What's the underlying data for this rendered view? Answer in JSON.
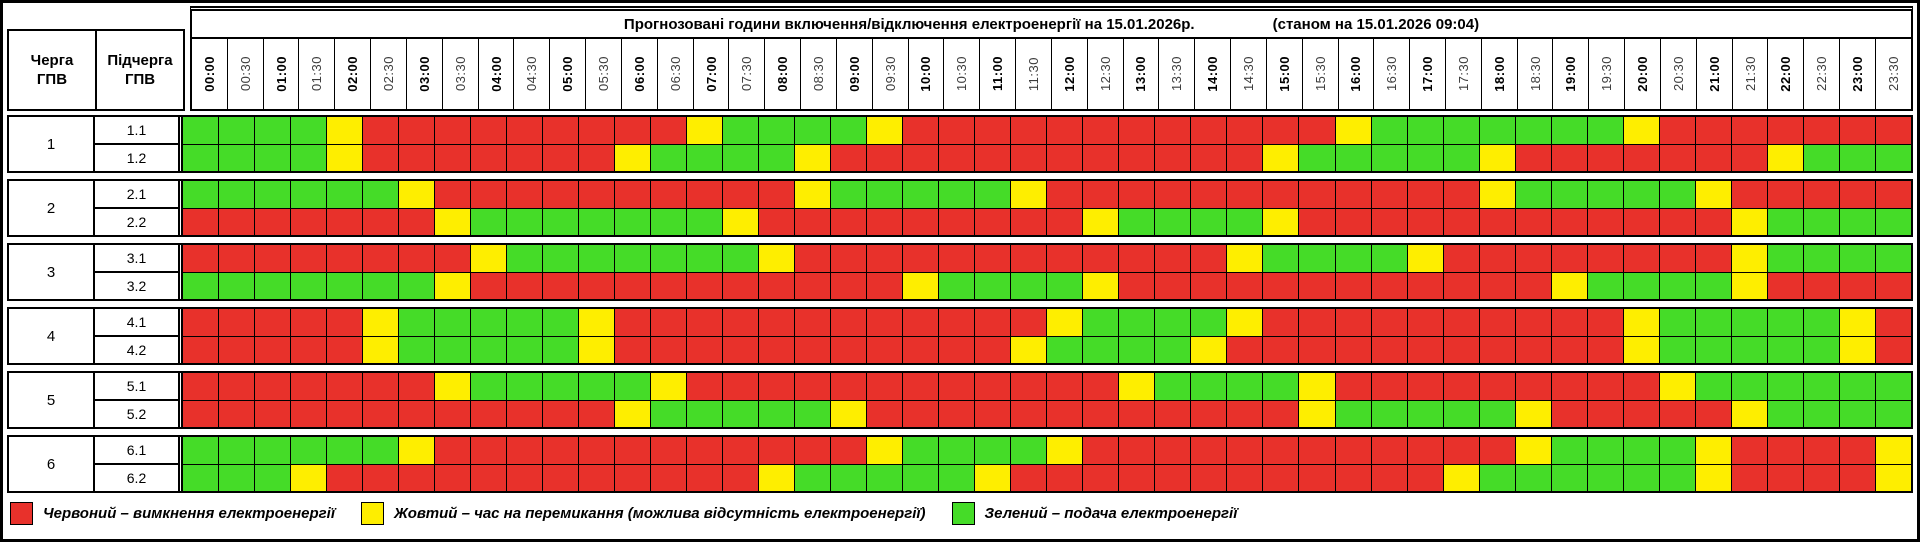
{
  "chart_data": {
    "type": "heatmap",
    "title": "Прогнозовані години включення/відключення електроенергії на 15.01.2026р.",
    "status": "(станом на 15.01.2026 09:04)",
    "col_headers": {
      "queue": "Черга\nГПВ",
      "subqueue": "Підчерга\nГПВ"
    },
    "x": [
      "00:00",
      "00:30",
      "01:00",
      "01:30",
      "02:00",
      "02:30",
      "03:00",
      "03:30",
      "04:00",
      "04:30",
      "05:00",
      "05:30",
      "06:00",
      "06:30",
      "07:00",
      "07:30",
      "08:00",
      "08:30",
      "09:00",
      "09:30",
      "10:00",
      "10:30",
      "11:00",
      "11:30",
      "12:00",
      "12:30",
      "13:00",
      "13:30",
      "14:00",
      "14:30",
      "15:00",
      "15:30",
      "16:00",
      "16:30",
      "17:00",
      "17:30",
      "18:00",
      "18:30",
      "19:00",
      "19:30",
      "20:00",
      "20:30",
      "21:00",
      "21:30",
      "22:00",
      "22:30",
      "23:00",
      "23:30"
    ],
    "slot_minutes": 30,
    "groups": [
      {
        "queue": "1",
        "rows": [
          {
            "label": "1.1",
            "slots": "GGGGYRRRRRRRRRYGGGGYRRRRRRRRRRRRYGGGGGGGYRRRRRRR"
          },
          {
            "label": "1.2",
            "slots": "GGGGYRRRRRRRYGGGGYRRRRRRRRRRRRYGGGGGYRRRRRRRYGGG"
          }
        ]
      },
      {
        "queue": "2",
        "rows": [
          {
            "label": "2.1",
            "slots": "GGGGGGYRRRRRRRRRRYGGGGGYRRRRRRRRRRRRYGGGGGYRRRRR"
          },
          {
            "label": "2.2",
            "slots": "RRRRRRRYGGGGGGGYRRRRRRRRRYGGGGYRRRRRRRRRRRRYGGGG"
          }
        ]
      },
      {
        "queue": "3",
        "rows": [
          {
            "label": "3.1",
            "slots": "RRRRRRRRYGGGGGGGYRRRRRRRRRRRRYGGGGYRRRRRRRRYGGGG"
          },
          {
            "label": "3.2",
            "slots": "GGGGGGGYRRRRRRRRRRRRYGGGGYRRRRRRRRRRRRYGGGGYRRRR"
          }
        ]
      },
      {
        "queue": "4",
        "rows": [
          {
            "label": "4.1",
            "slots": "RRRRRYGGGGGYRRRRRRRRRRRRYGGGGYRRRRRRRRRRYGGGGGYR"
          },
          {
            "label": "4.2",
            "slots": "RRRRRYGGGGGYRRRRRRRRRRRYGGGGYRRRRRRRRRRRYGGGGGYR"
          }
        ]
      },
      {
        "queue": "5",
        "rows": [
          {
            "label": "5.1",
            "slots": "RRRRRRRYGGGGGYRRRRRRRRRRRRYGGGGYRRRRRRRRRYGGGGGG"
          },
          {
            "label": "5.2",
            "slots": "RRRRRRRRRRRRYGGGGGYRRRRRRRRRRRRYGGGGGYRRRRRYGGGG"
          }
        ]
      },
      {
        "queue": "6",
        "rows": [
          {
            "label": "6.1",
            "slots": "GGGGGGYRRRRRRRRRRRRYGGGGYRRRRRRRRRRRRYGGGGYRRRRY"
          },
          {
            "label": "6.2",
            "slots": "GGGYRRRRRRRRRRRRYGGGGGYRRRRRRRRRRRRYGGGGGGYRRRRY"
          }
        ]
      }
    ],
    "colors": {
      "R": "#e8312b",
      "Y": "#feee00",
      "G": "#45dc28"
    },
    "legend": [
      {
        "key": "R",
        "label": "Червоний – вимкнення електроенергії"
      },
      {
        "key": "Y",
        "label": "Жовтий – час на перемикання (можлива відсутність електроенергії)"
      },
      {
        "key": "G",
        "label": "Зелений – подача електроенергії"
      }
    ]
  }
}
